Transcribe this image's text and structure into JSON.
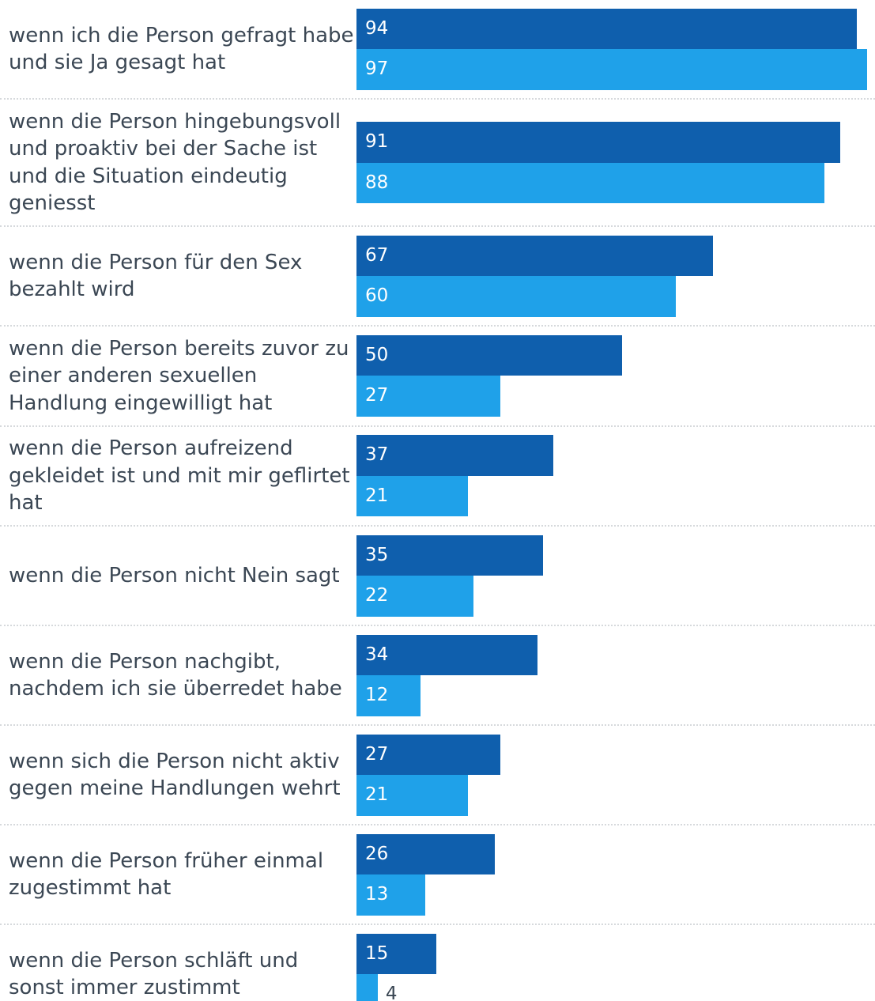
{
  "chart_data": {
    "type": "bar",
    "orientation": "horizontal",
    "categories": [
      "wenn ich die Person gefragt habe und sie Ja gesagt hat",
      "wenn die Person hingebungsvoll und proaktiv bei der Sache ist und die Situation eindeutig geniesst",
      "wenn die Person für den Sex bezahlt wird",
      "wenn die Person bereits zuvor zu einer anderen sexuellen Handlung eingewilligt hat",
      "wenn die Person aufreizend gekleidet ist und mit mir geflirtet hat",
      "wenn die Person nicht Nein sagt",
      "wenn die Person nachgibt, nachdem ich sie überredet habe",
      "wenn sich die Person nicht aktiv gegen meine Handlungen wehrt",
      "wenn die Person früher einmal zugestimmt hat",
      "wenn die Person schläft und sonst immer zustimmt"
    ],
    "series": [
      {
        "color": "#0f5fad",
        "values": [
          94,
          91,
          67,
          50,
          37,
          35,
          34,
          27,
          26,
          15
        ]
      },
      {
        "color": "#1fa1e9",
        "values": [
          97,
          88,
          60,
          27,
          21,
          22,
          12,
          21,
          13,
          4
        ]
      }
    ],
    "xlim": [
      0,
      96
    ]
  }
}
